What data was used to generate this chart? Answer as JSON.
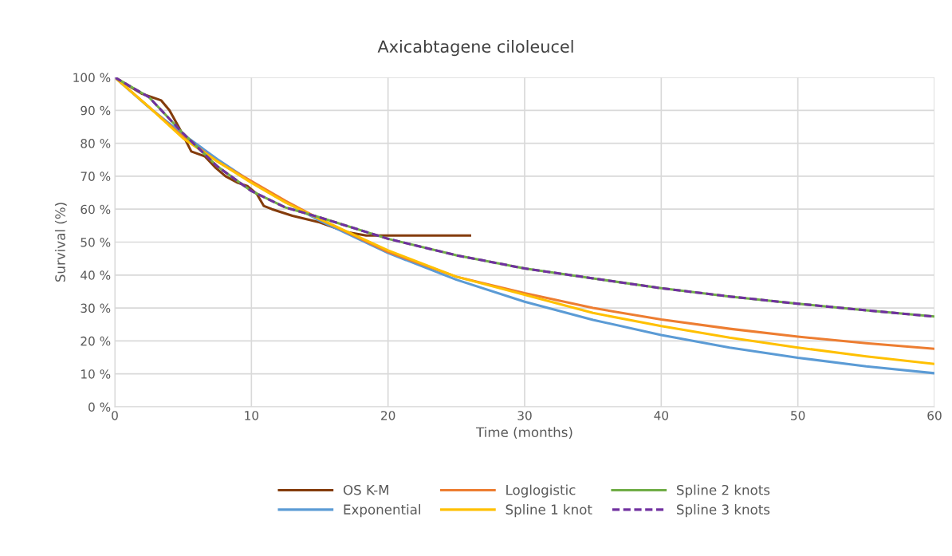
{
  "chart_data": {
    "type": "line",
    "title": "Axicabtagene ciloleucel",
    "xlabel": "Time (months)",
    "ylabel": "Survival (%)",
    "xlim": [
      0,
      60
    ],
    "xticks": [
      0,
      10,
      20,
      30,
      40,
      50,
      60
    ],
    "ylim": [
      0,
      100
    ],
    "yticks": [
      {
        "value": 0,
        "label": "0 %"
      },
      {
        "value": 10,
        "label": "10 %"
      },
      {
        "value": 20,
        "label": "20 %"
      },
      {
        "value": 30,
        "label": "30 %"
      },
      {
        "value": 40,
        "label": "40 %"
      },
      {
        "value": 50,
        "label": "50 %"
      },
      {
        "value": 60,
        "label": "60 %"
      },
      {
        "value": 70,
        "label": "70 %"
      },
      {
        "value": 80,
        "label": "80 %"
      },
      {
        "value": 90,
        "label": "90 %"
      },
      {
        "value": 100,
        "label": "100 %"
      }
    ],
    "grid": true,
    "legend": "bottom",
    "marker": "none",
    "series": [
      {
        "name": "OS K-M",
        "color": "#843c0c",
        "x": [
          0,
          1,
          2,
          2.7,
          3.4,
          4,
          4.8,
          5.6,
          6.6,
          7.4,
          8.1,
          9,
          9.7,
          10.4,
          10.9,
          11.5,
          13,
          15,
          17,
          18.4,
          20,
          22,
          24,
          26
        ],
        "values": [
          100,
          97.5,
          95,
          94,
          93,
          90,
          84,
          77.5,
          76,
          72.5,
          70,
          68,
          67,
          64.6,
          61,
          60,
          58,
          56,
          53,
          52,
          52,
          52,
          52,
          52
        ]
      },
      {
        "name": "Exponential",
        "color": "#5b9bd5",
        "x": [
          0,
          2.5,
          5,
          7.5,
          10,
          12.5,
          15,
          20,
          25,
          30,
          35,
          40,
          45,
          50,
          55,
          60
        ],
        "values": [
          100,
          90.9,
          82.7,
          75.2,
          68.3,
          62.1,
          56.5,
          46.7,
          38.6,
          31.9,
          26.4,
          21.8,
          18.0,
          14.9,
          12.3,
          10.2
        ]
      },
      {
        "name": "Loglogistic",
        "color": "#ed7d31",
        "x": [
          0,
          2.5,
          5,
          7.5,
          10,
          12.5,
          15,
          20,
          25,
          30,
          35,
          40,
          45,
          50,
          55,
          60
        ],
        "values": [
          100,
          91,
          82,
          74.5,
          68.5,
          62.5,
          57,
          47,
          39.5,
          34.5,
          30,
          26.5,
          23.7,
          21.3,
          19.3,
          17.6
        ]
      },
      {
        "name": "Spline 1 knot",
        "color": "#ffc000",
        "x": [
          0,
          2.5,
          5,
          7.5,
          10,
          12.5,
          15,
          20,
          25,
          30,
          35,
          40,
          45,
          50,
          55,
          60
        ],
        "values": [
          100,
          91,
          81.5,
          74.5,
          68,
          62,
          57,
          47.5,
          39.5,
          34,
          28.5,
          24.5,
          21,
          18,
          15.3,
          13
        ]
      },
      {
        "name": "Spline 2 knots",
        "color": "#70ad47",
        "x": [
          0,
          2.5,
          5,
          7.5,
          10,
          12.5,
          15,
          20,
          25,
          30,
          35,
          40,
          45,
          50,
          55,
          60
        ],
        "values": [
          100,
          94,
          83,
          73,
          65.5,
          60.5,
          57.5,
          51,
          46,
          42,
          39,
          36,
          33.5,
          31.3,
          29.3,
          27.4
        ]
      },
      {
        "name": "Spline 3 knots",
        "color": "#7030a0",
        "line_style": "dashed",
        "x": [
          0,
          2.5,
          5,
          7.5,
          10,
          12.5,
          15,
          20,
          25,
          30,
          35,
          40,
          45,
          50,
          55,
          60
        ],
        "values": [
          100,
          94,
          83,
          73,
          65.5,
          60.5,
          57.5,
          51,
          46,
          42,
          39,
          36,
          33.5,
          31.3,
          29.3,
          27.4
        ]
      }
    ]
  }
}
